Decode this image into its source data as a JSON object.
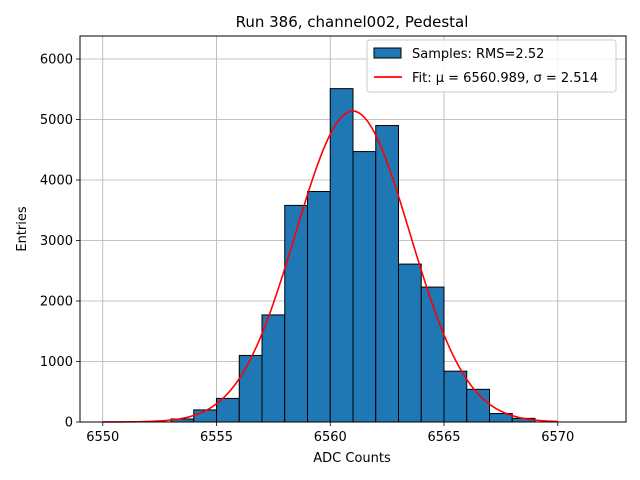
{
  "chart_data": {
    "type": "bar",
    "title": "Run 386, channel002, Pedestal",
    "xlabel": "ADC Counts",
    "ylabel": "Entries",
    "xlim": [
      6549,
      6573
    ],
    "ylim": [
      0,
      6380
    ],
    "xticks": [
      6550,
      6555,
      6560,
      6565,
      6570
    ],
    "yticks": [
      0,
      1000,
      2000,
      3000,
      4000,
      5000,
      6000
    ],
    "grid": true,
    "legend_position": "top-right",
    "histogram": {
      "name": "Samples: RMS=2.52",
      "color": "#1f77b4",
      "edge_color": "#000000",
      "bin_width": 1,
      "bin_left_edges": [
        6550,
        6551,
        6552,
        6553,
        6554,
        6555,
        6556,
        6557,
        6558,
        6559,
        6560,
        6561,
        6562,
        6563,
        6564,
        6565,
        6566,
        6567,
        6568,
        6569,
        6570,
        6571
      ],
      "counts": [
        0,
        0,
        0,
        50,
        200,
        390,
        1100,
        1770,
        3580,
        3810,
        5510,
        4470,
        4900,
        2610,
        2230,
        840,
        540,
        140,
        60,
        0,
        0,
        0
      ]
    },
    "fit": {
      "name": "Fit: μ = 6560.989, σ = 2.514",
      "color": "#ff0000",
      "mu": 6560.989,
      "sigma": 2.514,
      "amplitude": 5140,
      "x_range": [
        6550,
        6570
      ]
    }
  }
}
